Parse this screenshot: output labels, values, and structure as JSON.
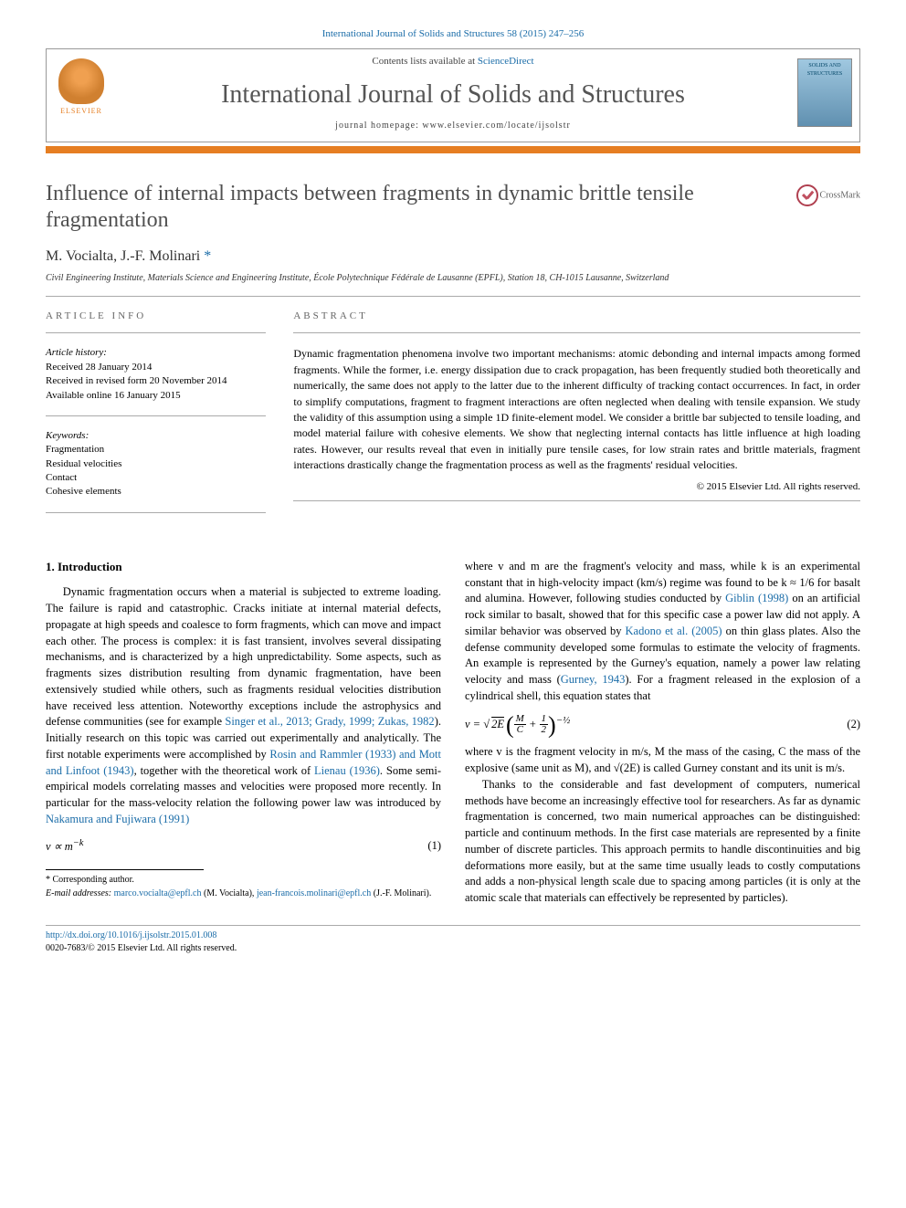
{
  "top_citation": "International Journal of Solids and Structures 58 (2015) 247–256",
  "header": {
    "contents_line_pre": "Contents lists available at ",
    "contents_link": "ScienceDirect",
    "journal_name": "International Journal of Solids and Structures",
    "homepage_line": "journal homepage: www.elsevier.com/locate/ijsolstr",
    "publisher_logo_text": "ELSEVIER",
    "cover_text": "SOLIDS AND STRUCTURES"
  },
  "article": {
    "title": "Influence of internal impacts between fragments in dynamic brittle tensile fragmentation",
    "crossmark": "CrossMark",
    "authors_html": "M. Vocialta, J.-F. Molinari",
    "corr_mark": "*",
    "affiliation": "Civil Engineering Institute, Materials Science and Engineering Institute, École Polytechnique Fédérale de Lausanne (EPFL), Station 18, CH-1015 Lausanne, Switzerland"
  },
  "info": {
    "label": "article info",
    "history_header": "Article history:",
    "history": [
      "Received 28 January 2014",
      "Received in revised form 20 November 2014",
      "Available online 16 January 2015"
    ],
    "keywords_header": "Keywords:",
    "keywords": [
      "Fragmentation",
      "Residual velocities",
      "Contact",
      "Cohesive elements"
    ]
  },
  "abstract": {
    "label": "abstract",
    "text": "Dynamic fragmentation phenomena involve two important mechanisms: atomic debonding and internal impacts among formed fragments. While the former, i.e. energy dissipation due to crack propagation, has been frequently studied both theoretically and numerically, the same does not apply to the latter due to the inherent difficulty of tracking contact occurrences. In fact, in order to simplify computations, fragment to fragment interactions are often neglected when dealing with tensile expansion. We study the validity of this assumption using a simple 1D finite-element model. We consider a brittle bar subjected to tensile loading, and model material failure with cohesive elements. We show that neglecting internal contacts has little influence at high loading rates. However, our results reveal that even in initially pure tensile cases, for low strain rates and brittle materials, fragment interactions drastically change the fragmentation process as well as the fragments' residual velocities.",
    "copyright": "© 2015 Elsevier Ltd. All rights reserved."
  },
  "body": {
    "section_title": "1. Introduction",
    "p1a": "Dynamic fragmentation occurs when a material is subjected to extreme loading. The failure is rapid and catastrophic. Cracks initiate at internal material defects, propagate at high speeds and coalesce to form fragments, which can move and impact each other. The process is complex: it is fast transient, involves several dissipating mechanisms, and is characterized by a high unpredictability. Some aspects, such as fragments sizes distribution resulting from dynamic fragmentation, have been extensively studied while others, such as fragments residual velocities distribution have received less attention. Noteworthy exceptions include the astrophysics and defense communities (see for example ",
    "p1_link1": "Singer et al., 2013; Grady, 1999; Zukas, 1982",
    "p1b": "). Initially research on this topic was carried out experimentally and analytically. The first notable experiments were accomplished by ",
    "p1_link2": "Rosin and Rammler (1933) and Mott and Linfoot (1943)",
    "p1c": ", together with the theoretical work of ",
    "p1_link3": "Lienau (1936)",
    "p1d": ". Some semi-empirical models correlating masses and velocities were proposed more recently. In particular for the mass-velocity relation the following power law was introduced by ",
    "p1_link4": "Nakamura and Fujiwara (1991)",
    "eq1": "v ∝ m",
    "eq1_exp": "−k",
    "eq1_num": "(1)",
    "p2a": "where v and m are the fragment's velocity and mass, while k is an experimental constant that in high-velocity impact (km/s) regime was found to be k ≈ 1/6 for basalt and alumina. However, following studies conducted by ",
    "p2_link1": "Giblin (1998)",
    "p2b": " on an artificial rock similar to basalt, showed that for this specific case a power law did not apply. A similar behavior was observed by ",
    "p2_link2": "Kadono et al. (2005)",
    "p2c": " on thin glass plates. Also the defense community developed some formulas to estimate the velocity of fragments. An example is represented by the Gurney's equation, namely a power law relating velocity and mass (",
    "p2_link3": "Gurney, 1943",
    "p2d": "). For a fragment released in the explosion of a cylindrical shell, this equation states that",
    "eq2_num": "(2)",
    "p3": "where v is the fragment velocity in m/s, M the mass of the casing, C the mass of the explosive (same unit as M), and √(2E) is called Gurney constant and its unit is m/s.",
    "p4": "Thanks to the considerable and fast development of computers, numerical methods have become an increasingly effective tool for researchers. As far as dynamic fragmentation is concerned, two main numerical approaches can be distinguished: particle and continuum methods. In the first case materials are represented by a finite number of discrete particles. This approach permits to handle discontinuities and big deformations more easily, but at the same time usually leads to costly computations and adds a non-physical length scale due to spacing among particles (it is only at the atomic scale that materials can effectively be represented by particles)."
  },
  "footer": {
    "corr": "* Corresponding author.",
    "email_label": "E-mail addresses: ",
    "email1": "marco.vocialta@epfl.ch",
    "email1_who": " (M. Vocialta), ",
    "email2": "jean-francois.molinari@epfl.ch",
    "email2_who": " (J.-F. Molinari)."
  },
  "bottom": {
    "doi": "http://dx.doi.org/10.1016/j.ijsolstr.2015.01.008",
    "issn": "0020-7683/© 2015 Elsevier Ltd. All rights reserved."
  },
  "colors": {
    "link": "#1a6ca8",
    "accent": "#e67e22",
    "title_gray": "#505050"
  }
}
